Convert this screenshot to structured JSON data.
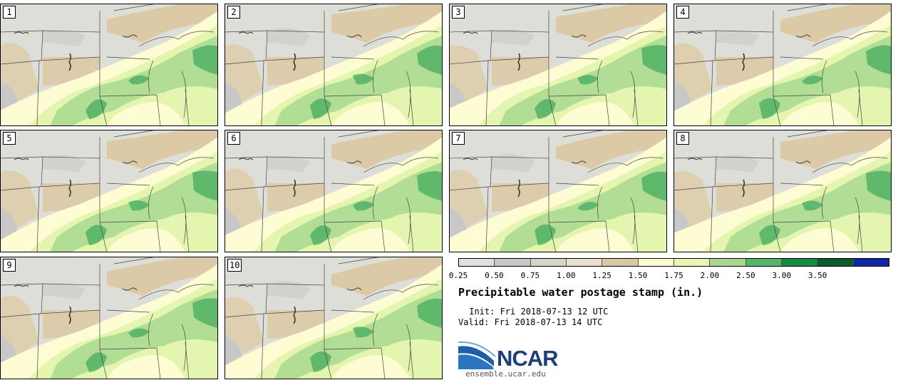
{
  "page": {
    "title": "Precipitable water postage stamp (in.)"
  },
  "members": [
    "1",
    "2",
    "3",
    "4",
    "5",
    "6",
    "7",
    "8",
    "9",
    "10"
  ],
  "legend": {
    "ticks": [
      "0.25",
      "0.50",
      "0.75",
      "1.00",
      "1.25",
      "1.50",
      "1.75",
      "2.00",
      "2.50",
      "3.00",
      "3.50"
    ],
    "colors": [
      "#e0e0e0",
      "#c8c8c8",
      "#d6d3c8",
      "#e8dfcc",
      "#d9c7a5",
      "#fbfbd4",
      "#e7f7b3",
      "#a8d891",
      "#55b56b",
      "#178a43",
      "#0c5c29",
      "#1126a6"
    ]
  },
  "info": {
    "title": "Precipitable water postage stamp (in.)",
    "init": " Init: Fri 2018-07-13 12 UTC",
    "valid": "Valid: Fri 2018-07-13 14 UTC"
  },
  "logo": {
    "text": "NCAR",
    "site": "ensemble.ucar.edu"
  },
  "map_colors": {
    "gray": "#c8c8c8",
    "lightgray": "#deded8",
    "tan": "#dccaa6",
    "cream": "#fdfcd2",
    "lightgreen": "#e4f5af",
    "green": "#a8d891",
    "darkgreen": "#4caf62"
  }
}
